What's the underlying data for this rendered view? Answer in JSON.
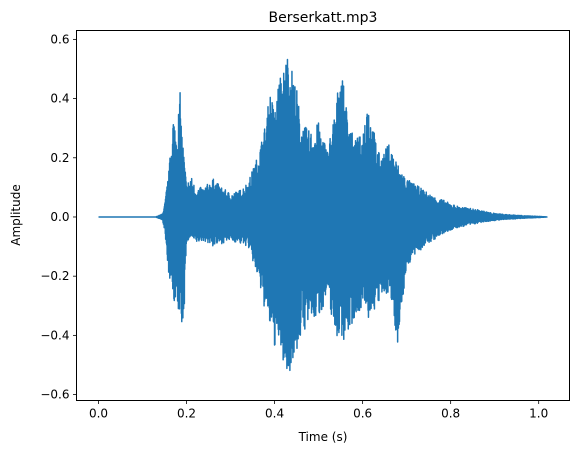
{
  "chart_data": {
    "type": "line",
    "title": "Berserkatt.mp3",
    "xlabel": "Time (s)",
    "ylabel": "Amplitude",
    "xlim": [
      -0.05,
      1.07
    ],
    "ylim": [
      -0.62,
      0.63
    ],
    "xticks": [
      0.0,
      0.2,
      0.4,
      0.6,
      0.8,
      1.0
    ],
    "yticks": [
      -0.6,
      -0.4,
      -0.2,
      0.0,
      0.2,
      0.4,
      0.6
    ],
    "xtick_labels": [
      "0.0",
      "0.2",
      "0.4",
      "0.6",
      "0.8",
      "1.0"
    ],
    "ytick_labels": [
      "−0.6",
      "−0.4",
      "−0.2",
      "0.0",
      "0.2",
      "0.4",
      "0.6"
    ],
    "grid": false,
    "series": [
      {
        "color": "#1f77b4",
        "envelope": {
          "t": [
            0.0,
            0.13,
            0.145,
            0.15,
            0.16,
            0.165,
            0.17,
            0.175,
            0.18,
            0.185,
            0.19,
            0.195,
            0.2,
            0.21,
            0.22,
            0.24,
            0.26,
            0.28,
            0.3,
            0.32,
            0.34,
            0.36,
            0.38,
            0.39,
            0.4,
            0.41,
            0.42,
            0.43,
            0.44,
            0.45,
            0.46,
            0.48,
            0.5,
            0.52,
            0.54,
            0.55,
            0.56,
            0.58,
            0.6,
            0.61,
            0.62,
            0.64,
            0.66,
            0.68,
            0.7,
            0.72,
            0.74,
            0.76,
            0.78,
            0.8,
            0.82,
            0.84,
            0.86,
            0.88,
            0.9,
            0.93,
            0.95,
            0.97,
            1.0,
            1.02
          ],
          "upper": [
            0.0,
            0.0,
            0.01,
            0.04,
            0.16,
            0.25,
            0.36,
            0.3,
            0.33,
            0.43,
            0.28,
            0.2,
            0.11,
            0.14,
            0.1,
            0.1,
            0.13,
            0.1,
            0.08,
            0.09,
            0.12,
            0.2,
            0.32,
            0.43,
            0.36,
            0.47,
            0.5,
            0.57,
            0.5,
            0.44,
            0.32,
            0.29,
            0.32,
            0.23,
            0.38,
            0.53,
            0.4,
            0.26,
            0.28,
            0.42,
            0.33,
            0.2,
            0.25,
            0.18,
            0.13,
            0.11,
            0.09,
            0.07,
            0.06,
            0.045,
            0.035,
            0.03,
            0.025,
            0.018,
            0.012,
            0.008,
            0.006,
            0.004,
            0.002,
            0.0
          ],
          "lower": [
            0.0,
            0.0,
            -0.01,
            -0.05,
            -0.2,
            -0.25,
            -0.27,
            -0.31,
            -0.34,
            -0.32,
            -0.39,
            -0.3,
            -0.09,
            -0.07,
            -0.09,
            -0.08,
            -0.1,
            -0.09,
            -0.08,
            -0.09,
            -0.1,
            -0.2,
            -0.33,
            -0.38,
            -0.44,
            -0.43,
            -0.5,
            -0.56,
            -0.48,
            -0.47,
            -0.4,
            -0.36,
            -0.34,
            -0.27,
            -0.41,
            -0.4,
            -0.42,
            -0.35,
            -0.3,
            -0.36,
            -0.33,
            -0.29,
            -0.25,
            -0.43,
            -0.17,
            -0.13,
            -0.1,
            -0.08,
            -0.06,
            -0.045,
            -0.035,
            -0.028,
            -0.022,
            -0.016,
            -0.012,
            -0.008,
            -0.006,
            -0.004,
            -0.002,
            0.0
          ]
        }
      }
    ]
  }
}
